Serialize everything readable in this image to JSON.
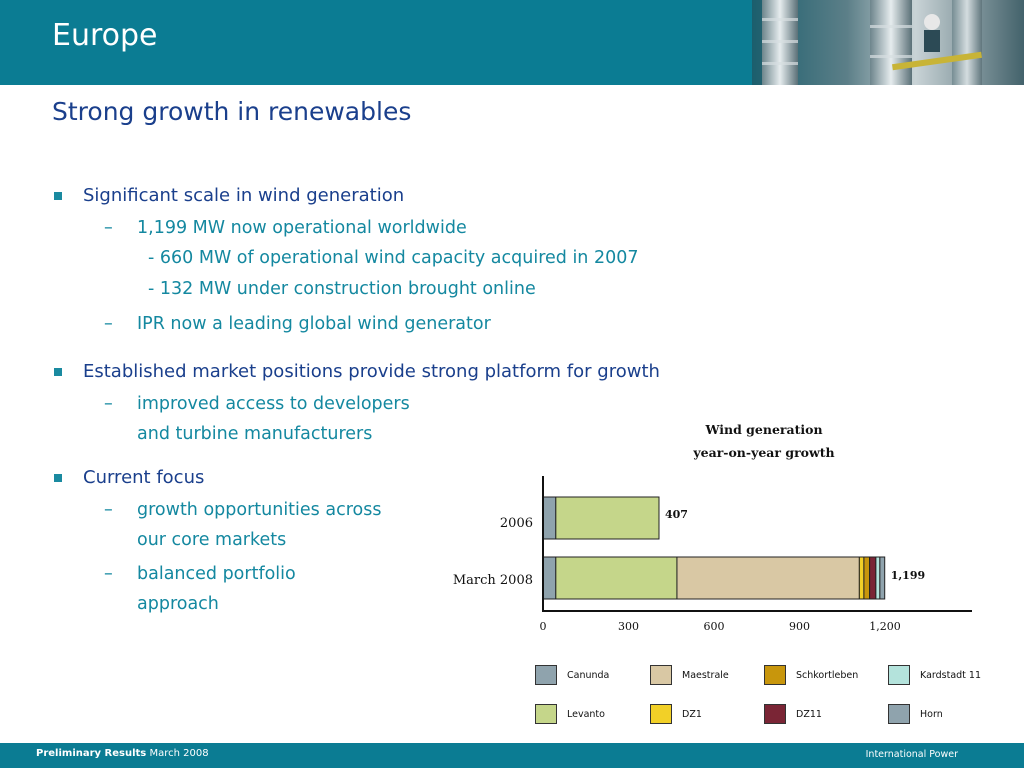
{
  "header": {
    "title": "Europe"
  },
  "subtitle": "Strong growth in renewables",
  "bullets": [
    {
      "text": "Significant scale in wind generation",
      "subs": [
        {
          "text": "1,199 MW now operational worldwide",
          "subsubs": [
            "- 660 MW of operational wind capacity acquired in 2007",
            "- 132 MW under construction brought online"
          ]
        },
        {
          "text": "IPR now a leading global wind generator"
        }
      ]
    },
    {
      "text": "Established market positions provide strong platform for growth",
      "subs": [
        {
          "text": "improved access to developers",
          "cont": "and turbine manufacturers"
        }
      ]
    },
    {
      "text": "Current focus",
      "subs": [
        {
          "text": "growth opportunities across",
          "cont": "our core markets"
        },
        {
          "text": "balanced portfolio",
          "cont": "approach"
        }
      ]
    }
  ],
  "chart_data": {
    "type": "bar",
    "orientation": "horizontal",
    "stacked": true,
    "title": "Wind generation",
    "subtitle": "year-on-year growth",
    "categories": [
      "2006",
      "March 2008"
    ],
    "totals": [
      "407",
      "1,199"
    ],
    "xticks": [
      "0",
      "300",
      "600",
      "900",
      "1,200"
    ],
    "xlim": [
      0,
      1500
    ],
    "series": [
      {
        "name": "Canunda",
        "color": "#8fa3ad",
        "values": [
          45,
          45
        ]
      },
      {
        "name": "Levanto",
        "color": "#c5d68a",
        "values": [
          362,
          425
        ]
      },
      {
        "name": "Maestrale",
        "color": "#d9c8a4",
        "values": [
          0,
          640
        ]
      },
      {
        "name": "DZ1",
        "color": "#f2d027",
        "values": [
          0,
          16
        ]
      },
      {
        "name": "Schkortleben",
        "color": "#c8960c",
        "values": [
          0,
          20
        ]
      },
      {
        "name": "DZ11",
        "color": "#7a2535",
        "values": [
          0,
          22
        ]
      },
      {
        "name": "Kardstadt 11",
        "color": "#b4e3dc",
        "values": [
          0,
          14
        ]
      },
      {
        "name": "Horn",
        "color": "#8fa3ad",
        "values": [
          0,
          17
        ]
      }
    ]
  },
  "legend_rows": [
    [
      "Canunda",
      "Maestrale",
      "Schkortleben",
      "Kardstadt 11"
    ],
    [
      "Levanto",
      "DZ1",
      "DZ11",
      "Horn"
    ]
  ],
  "footer": {
    "left_bold": "Preliminary Results",
    "left_rest": "March 2008",
    "right": "International Power"
  }
}
